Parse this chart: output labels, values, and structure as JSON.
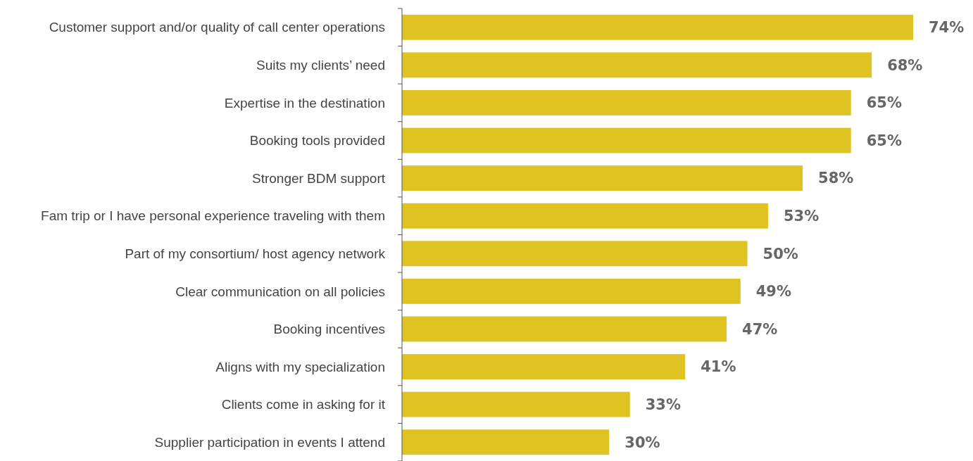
{
  "chart_data": {
    "type": "bar",
    "orientation": "horizontal",
    "categories": [
      "Customer support and/or quality of call center operations",
      "Suits my clients’ need",
      "Expertise in the destination",
      "Booking tools provided",
      "Stronger BDM support",
      "Fam trip or I have personal experience traveling with them",
      "Part of my consortium/ host agency network",
      "Clear communication on all policies",
      "Booking incentives",
      "Aligns with my specialization",
      "Clients come in asking for it",
      "Supplier participation in events I attend"
    ],
    "values": [
      74,
      68,
      65,
      65,
      58,
      53,
      50,
      49,
      47,
      41,
      33,
      30
    ],
    "value_labels": [
      "74%",
      "68%",
      "65%",
      "65%",
      "58%",
      "53%",
      "50%",
      "49%",
      "47%",
      "41%",
      "33%",
      "30%"
    ],
    "color": "#dfc322",
    "tick_labels": "y"
  }
}
